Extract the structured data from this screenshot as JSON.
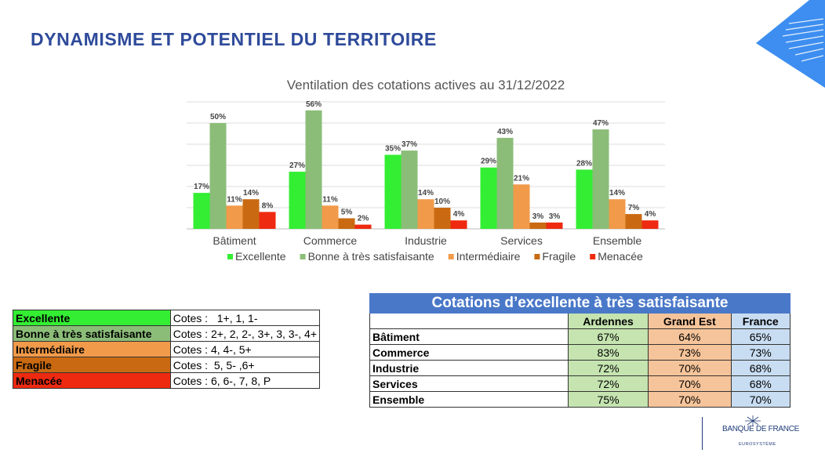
{
  "page": {
    "title": "DYNAMISME ET POTENTIEL DU TERRITOIRE"
  },
  "chart_data": {
    "type": "bar",
    "title": "Ventilation des cotations actives au 31/12/2022",
    "xlabel": "",
    "ylabel": "",
    "ylim": [
      0,
      60
    ],
    "grid": true,
    "legend_placement": "bottom",
    "categories": [
      "Bâtiment",
      "Commerce",
      "Industrie",
      "Services",
      "Ensemble"
    ],
    "series": [
      {
        "name": "Excellente",
        "color": "#33ee33",
        "values": [
          17,
          27,
          35,
          29,
          28
        ],
        "labels": [
          "17%",
          "27%",
          "35%",
          "29%",
          "28%"
        ]
      },
      {
        "name": "Bonne à très satisfaisante",
        "color": "#8bbd78",
        "values": [
          50,
          56,
          37,
          43,
          47
        ],
        "labels": [
          "50%",
          "56%",
          "37%",
          "43%",
          "47%"
        ]
      },
      {
        "name": "Intermédiaire",
        "color": "#f19a4a",
        "values": [
          11,
          11,
          14,
          21,
          14
        ],
        "labels": [
          "11%",
          "11%",
          "14%",
          "21%",
          "14%"
        ]
      },
      {
        "name": "Fragile",
        "color": "#c96a12",
        "values": [
          14,
          5,
          10,
          3,
          7
        ],
        "labels": [
          "14%",
          "5%",
          "10%",
          "3%",
          "7%"
        ]
      },
      {
        "name": "Menacée",
        "color": "#ee2a10",
        "values": [
          8,
          2,
          4,
          3,
          4
        ],
        "labels": [
          "8%",
          "2%",
          "4%",
          "3%",
          "4%"
        ]
      }
    ]
  },
  "legend_table": {
    "rows": [
      {
        "category": "Excellente",
        "cotes": "Cotes :   1+, 1, 1-",
        "color": "#33ee33"
      },
      {
        "category": "Bonne à très satisfaisante",
        "cotes": "Cotes : 2+, 2, 2-, 3+, 3, 3-, 4+",
        "color": "#8bbd78"
      },
      {
        "category": "Intermédiaire",
        "cotes": "Cotes : 4, 4-, 5+",
        "color": "#f19a4a"
      },
      {
        "category": "Fragile",
        "cotes": "Cotes :  5, 5- ,6+",
        "color": "#c96a12"
      },
      {
        "category": "Menacée",
        "cotes": "Cotes : 6, 6-, 7, 8, P",
        "color": "#ee2a10"
      }
    ]
  },
  "ratings_table": {
    "title": "Cotations d’excellente  à très satisfaisante",
    "headers": [
      "",
      "Ardennes",
      "Grand Est",
      "France"
    ],
    "rows": [
      {
        "sector": "Bâtiment",
        "values": [
          "67%",
          "64%",
          "65%"
        ]
      },
      {
        "sector": "Commerce",
        "values": [
          "83%",
          "73%",
          "73%"
        ]
      },
      {
        "sector": "Industrie",
        "values": [
          "72%",
          "70%",
          "68%"
        ]
      },
      {
        "sector": "Services",
        "values": [
          "72%",
          "70%",
          "68%"
        ]
      },
      {
        "sector": "Ensemble",
        "values": [
          "75%",
          "70%",
          "70%"
        ]
      }
    ],
    "colors": {
      "ardennes": "#c5e4b0",
      "grand_est": "#f6c49a",
      "france": "#c8ddf2",
      "header": "#4a78c8"
    }
  },
  "logo": {
    "name": "BANQUE DE FRANCE",
    "subtitle": "EUROSYSTÈME",
    "icon": "banque-de-france-logo"
  },
  "decoration": {
    "icon": "corner-stripes-icon",
    "color": "#3d8ef0"
  }
}
